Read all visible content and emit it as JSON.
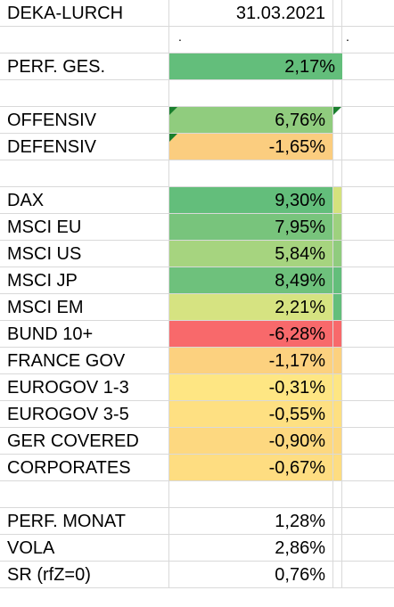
{
  "header": {
    "fund_name": "DEKA-LURCH",
    "date": "31.03.2021"
  },
  "marker_row": {
    "dot_b": ".",
    "dot_d": "."
  },
  "summary": {
    "label": "PERF. GES.",
    "value": "2,17%",
    "color": "#63be7b"
  },
  "strategies": [
    {
      "label": "OFFENSIV",
      "value": "6,76%",
      "color": "#90cc7e"
    },
    {
      "label": "DEFENSIV",
      "value": "-1,65%",
      "color": "#fbcd7f"
    }
  ],
  "assets": [
    {
      "label": "DAX",
      "value": "9,30%",
      "color": "#63be7b",
      "bar_color": "#d4e27d"
    },
    {
      "label": "MSCI EU",
      "value": "7,95%",
      "color": "#78c47c",
      "bar_color": "#9ed17e"
    },
    {
      "label": "MSCI US",
      "value": "5,84%",
      "color": "#a6d47f",
      "bar_color": "#90cc7e"
    },
    {
      "label": "MSCI JP",
      "value": "8,49%",
      "color": "#6ec17c",
      "bar_color": "#63be7b"
    },
    {
      "label": "MSCI EM",
      "value": "2,21%",
      "color": "#d6e381",
      "bar_color": "#63be7b"
    },
    {
      "label": "BUND 10+",
      "value": "-6,28%",
      "color": "#f8696b",
      "bar_color": ""
    },
    {
      "label": "FRANCE GOV",
      "value": "-1,17%",
      "color": "#fcd17f",
      "bar_color": ""
    },
    {
      "label": "EUROGOV 1-3",
      "value": "-0,31%",
      "color": "#fee683",
      "bar_color": ""
    },
    {
      "label": "EUROGOV 3-5",
      "value": "-0,55%",
      "color": "#fee082",
      "bar_color": ""
    },
    {
      "label": "GER COVERED",
      "value": "-0,90%",
      "color": "#fdd880",
      "bar_color": ""
    },
    {
      "label": "CORPORATES",
      "value": "-0,67%",
      "color": "#fedd81",
      "bar_color": ""
    }
  ],
  "stats": [
    {
      "label": "PERF. MONAT",
      "value": "1,28%"
    },
    {
      "label": "VOLA",
      "value": "2,86%"
    },
    {
      "label": "SR (rfZ=0)",
      "value": "0,76%"
    }
  ]
}
